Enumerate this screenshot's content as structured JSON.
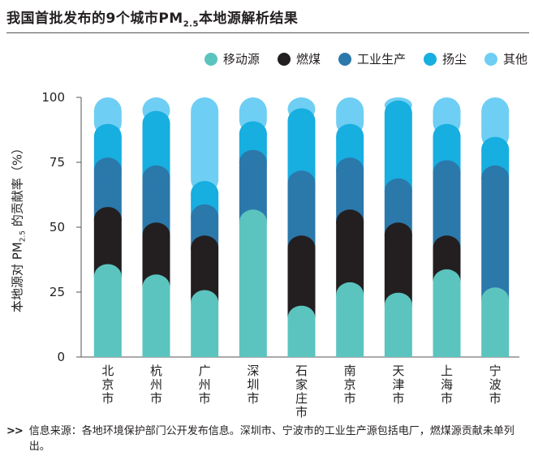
{
  "title": {
    "main": "我国首批发布的9个城市PM",
    "sub": "2.5",
    "tail": "本地源解析结果"
  },
  "footnote": {
    "arrow": ">>",
    "text": "信息来源：各地环境保护部门公开发布信息。深圳市、宁波市的工业生产源包括电厂，燃煤源贡献未单列出。"
  },
  "chart_data": {
    "type": "bar",
    "stacked": true,
    "ylabel": {
      "main": "本地源对 PM",
      "sub": "2.5",
      "tail": " 的贡献率（%）"
    },
    "ylim": [
      0,
      100
    ],
    "yticks": [
      0,
      25,
      50,
      75,
      100
    ],
    "categories": [
      "北京市",
      "杭州市",
      "广州市",
      "深圳市",
      "石家庄市",
      "南京市",
      "天津市",
      "上海市",
      "宁波市"
    ],
    "series": [
      {
        "name": "移动源",
        "color": "#5bc4bf",
        "values": [
          31,
          27,
          21,
          52,
          15,
          24,
          20,
          29,
          22
        ]
      },
      {
        "name": "燃煤",
        "color": "#231f20",
        "values": [
          22,
          20,
          21,
          0,
          27,
          28,
          27,
          13,
          0
        ]
      },
      {
        "name": "工业生产",
        "color": "#2b78ab",
        "values": [
          19,
          22,
          12,
          23,
          25,
          20,
          17,
          29,
          47
        ]
      },
      {
        "name": "扬尘",
        "color": "#17aee0",
        "values": [
          13,
          21,
          9,
          11,
          24,
          13,
          30,
          14,
          11
        ]
      },
      {
        "name": "其他",
        "color": "#6fcef3",
        "values": [
          15,
          10,
          37,
          14,
          9,
          15,
          6,
          15,
          20
        ]
      }
    ]
  }
}
